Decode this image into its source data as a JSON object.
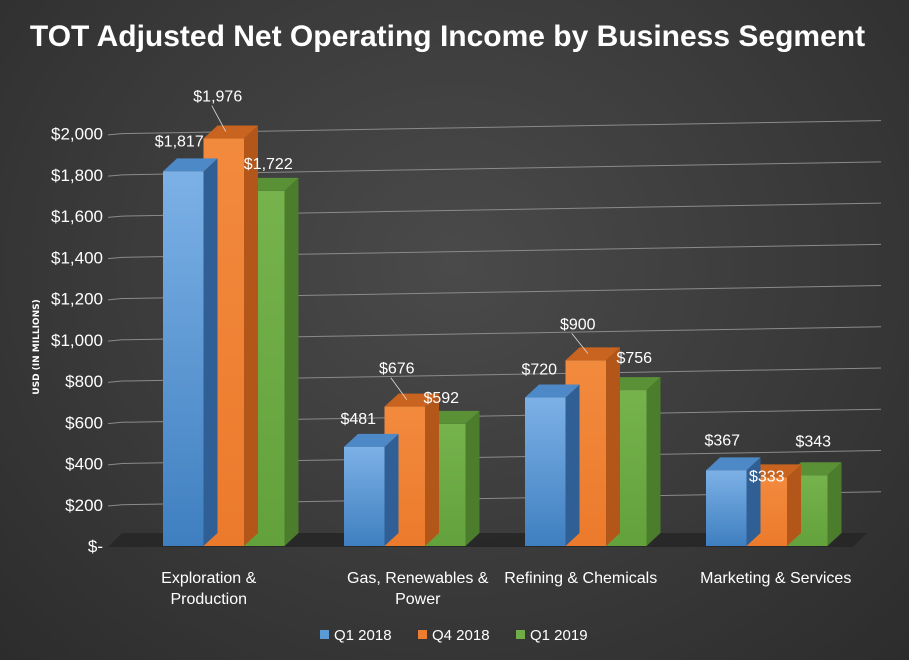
{
  "chart_data": {
    "type": "bar",
    "title": "TOT Adjusted Net Operating Income by Business Segment",
    "ylabel": "USD (IN MILLIONS)",
    "xlabel": "",
    "categories": [
      "Exploration & Production",
      "Gas, Renewables & Power",
      "Refining & Chemicals",
      "Marketing & Services"
    ],
    "series": [
      {
        "name": "Q1 2018",
        "values": [
          1817,
          481,
          720,
          367
        ],
        "labels": [
          "$1,817",
          "$481",
          "$720",
          "$367"
        ],
        "color": "#5b9bd5"
      },
      {
        "name": "Q4 2018",
        "values": [
          1976,
          676,
          900,
          333
        ],
        "labels": [
          "$1,976",
          "$676",
          "$900",
          "$333"
        ],
        "color": "#ed7d31"
      },
      {
        "name": "Q1 2019",
        "values": [
          1722,
          592,
          756,
          343
        ],
        "labels": [
          "$1,722",
          "$592",
          "$756",
          "$343"
        ],
        "color": "#70ad47"
      }
    ],
    "ylim": [
      0,
      2000
    ],
    "yticks": [
      0,
      200,
      400,
      600,
      800,
      1000,
      1200,
      1400,
      1600,
      1800,
      2000
    ],
    "ytick_labels": [
      "$-",
      "$200",
      "$400",
      "$600",
      "$800",
      "$1,000",
      "$1,200",
      "$1,400",
      "$1,600",
      "$1,800",
      "$2,000"
    ],
    "grid": true,
    "legend_position": "bottom",
    "style": "3d-clustered-column"
  }
}
